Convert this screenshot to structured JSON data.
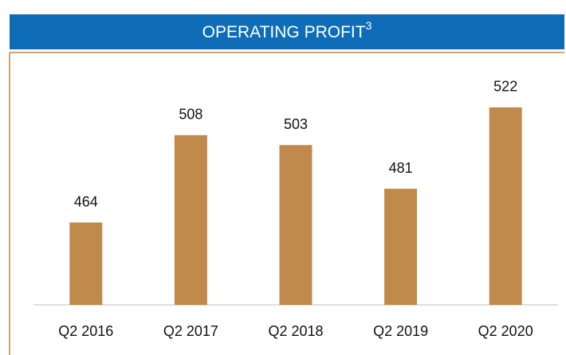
{
  "chart_data": {
    "type": "bar",
    "title": "OPERATING PROFIT",
    "title_superscript": "3",
    "categories": [
      "Q2 2016",
      "Q2 2017",
      "Q2 2018",
      "Q2 2019",
      "Q2 2020"
    ],
    "values": [
      464,
      508,
      503,
      481,
      522
    ],
    "color": "#bf8a4b",
    "ylim": [
      422.5,
      540
    ]
  }
}
